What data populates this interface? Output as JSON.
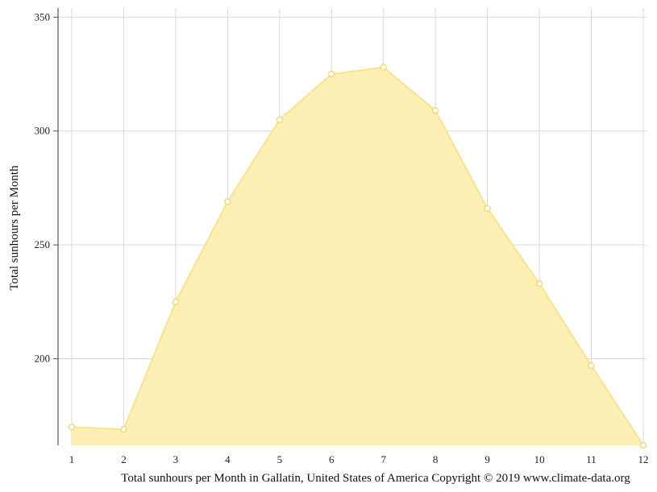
{
  "chart_data": {
    "type": "area",
    "ylabel": "Total sunhours per Month",
    "caption": "Total sunhours per Month in Gallatin, United States of America Copyright © 2019 www.climate-data.org",
    "x": [
      "1",
      "2",
      "3",
      "4",
      "5",
      "6",
      "7",
      "8",
      "9",
      "10",
      "11",
      "12"
    ],
    "series": [
      {
        "values": [
          170,
          169,
          225,
          269,
          305,
          325,
          328,
          309,
          266,
          233,
          197,
          162
        ]
      }
    ],
    "ylim": [
      162,
      354
    ],
    "yticks": [
      200,
      250,
      300,
      350
    ],
    "grid": true,
    "colors": {
      "fill": "#fbeeaf",
      "line": "#f9e38c",
      "marker_fill": "#ffffff",
      "marker_stroke": "#f3d56a",
      "grid": "#d9d9d9",
      "axis": "#555555"
    }
  }
}
